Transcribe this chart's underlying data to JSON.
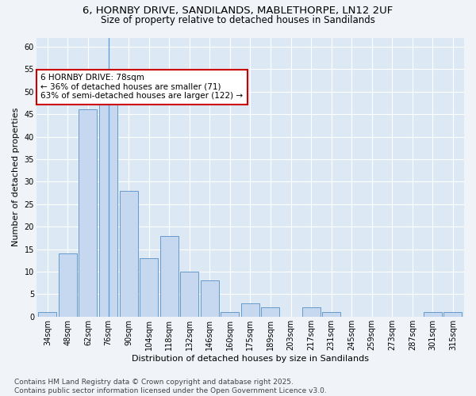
{
  "title_line1": "6, HORNBY DRIVE, SANDILANDS, MABLETHORPE, LN12 2UF",
  "title_line2": "Size of property relative to detached houses in Sandilands",
  "xlabel": "Distribution of detached houses by size in Sandilands",
  "ylabel": "Number of detached properties",
  "bar_labels": [
    "34sqm",
    "48sqm",
    "62sqm",
    "76sqm",
    "90sqm",
    "104sqm",
    "118sqm",
    "132sqm",
    "146sqm",
    "160sqm",
    "175sqm",
    "189sqm",
    "203sqm",
    "217sqm",
    "231sqm",
    "245sqm",
    "259sqm",
    "273sqm",
    "287sqm",
    "301sqm",
    "315sqm"
  ],
  "bar_values": [
    1,
    14,
    46,
    48,
    28,
    13,
    18,
    10,
    8,
    1,
    3,
    2,
    0,
    2,
    1,
    0,
    0,
    0,
    0,
    1,
    1
  ],
  "bar_color": "#c5d8f0",
  "bar_edge_color": "#6699cc",
  "ylim": [
    0,
    62
  ],
  "yticks": [
    0,
    5,
    10,
    15,
    20,
    25,
    30,
    35,
    40,
    45,
    50,
    55,
    60
  ],
  "vline_x": 3,
  "annotation_text": "6 HORNBY DRIVE: 78sqm\n← 36% of detached houses are smaller (71)\n63% of semi-detached houses are larger (122) →",
  "annotation_box_color": "#ffffff",
  "annotation_box_edge_color": "#cc0000",
  "background_color": "#f0f4f8",
  "plot_bg_color": "#dce8f4",
  "grid_color": "#ffffff",
  "footer_text": "Contains HM Land Registry data © Crown copyright and database right 2025.\nContains public sector information licensed under the Open Government Licence v3.0.",
  "title_fontsize": 9.5,
  "subtitle_fontsize": 8.5,
  "axis_label_fontsize": 8,
  "tick_fontsize": 7,
  "annotation_fontsize": 7.5,
  "footer_fontsize": 6.5
}
